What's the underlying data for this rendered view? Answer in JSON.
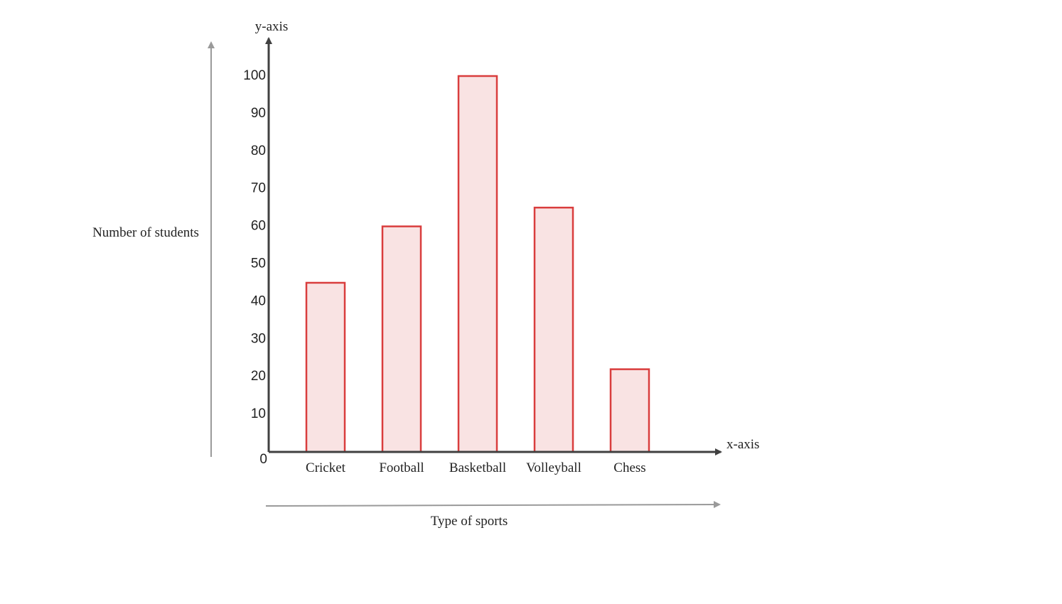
{
  "chart_data": {
    "type": "bar",
    "categories": [
      "Cricket",
      "Football",
      "Basketball",
      "Volleyball",
      "Chess"
    ],
    "values": [
      45,
      60,
      100,
      65,
      22
    ],
    "xlabel": "Type of sports",
    "ylabel": "Number of students",
    "x_axis_name": "x-axis",
    "y_axis_name": "y-axis",
    "ylim": [
      0,
      100
    ],
    "yticks": [
      0,
      10,
      20,
      30,
      40,
      50,
      60,
      70,
      80,
      90,
      100
    ],
    "grid": false,
    "colors": {
      "bar_fill": "#f9e3e3",
      "bar_stroke": "#d93d3d",
      "axis": "#404040",
      "label_arrow": "#9a9a9a"
    }
  }
}
